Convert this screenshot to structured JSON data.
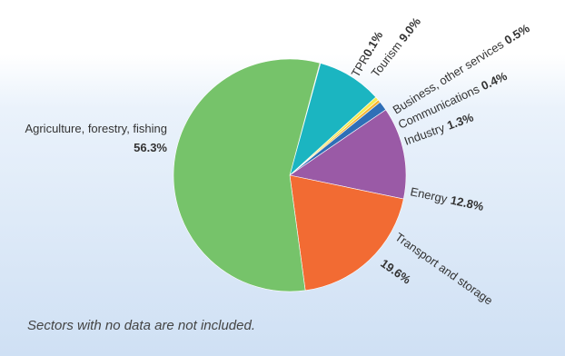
{
  "chart_data": {
    "type": "pie",
    "start_angle_deg": 285,
    "direction": "clockwise",
    "slices": [
      {
        "name": "TPR",
        "value_label": "0.1%",
        "value": 0.1,
        "color": "#c05a7a"
      },
      {
        "name": "Tourism",
        "value_label": "9.0%",
        "value": 9.0,
        "color": "#1bb5c1"
      },
      {
        "name": "Business, other services",
        "value_label": "0.5%",
        "value": 0.5,
        "color": "#f4ea4f"
      },
      {
        "name": "Communications",
        "value_label": "0.4%",
        "value": 0.4,
        "color": "#f5b433"
      },
      {
        "name": "Industry",
        "value_label": "1.3%",
        "value": 1.3,
        "color": "#2f6fb7"
      },
      {
        "name": "Energy",
        "value_label": "12.8%",
        "value": 12.8,
        "color": "#9a5aa6"
      },
      {
        "name": "Transport and storage",
        "value_label": "19.6%",
        "value": 19.6,
        "color": "#f26b33"
      },
      {
        "name": "Agriculture, forestry, fishing",
        "value_label": "56.3%",
        "value": 56.3,
        "color": "#76c36a"
      }
    ]
  },
  "footnote": "Sectors with no data are not included."
}
